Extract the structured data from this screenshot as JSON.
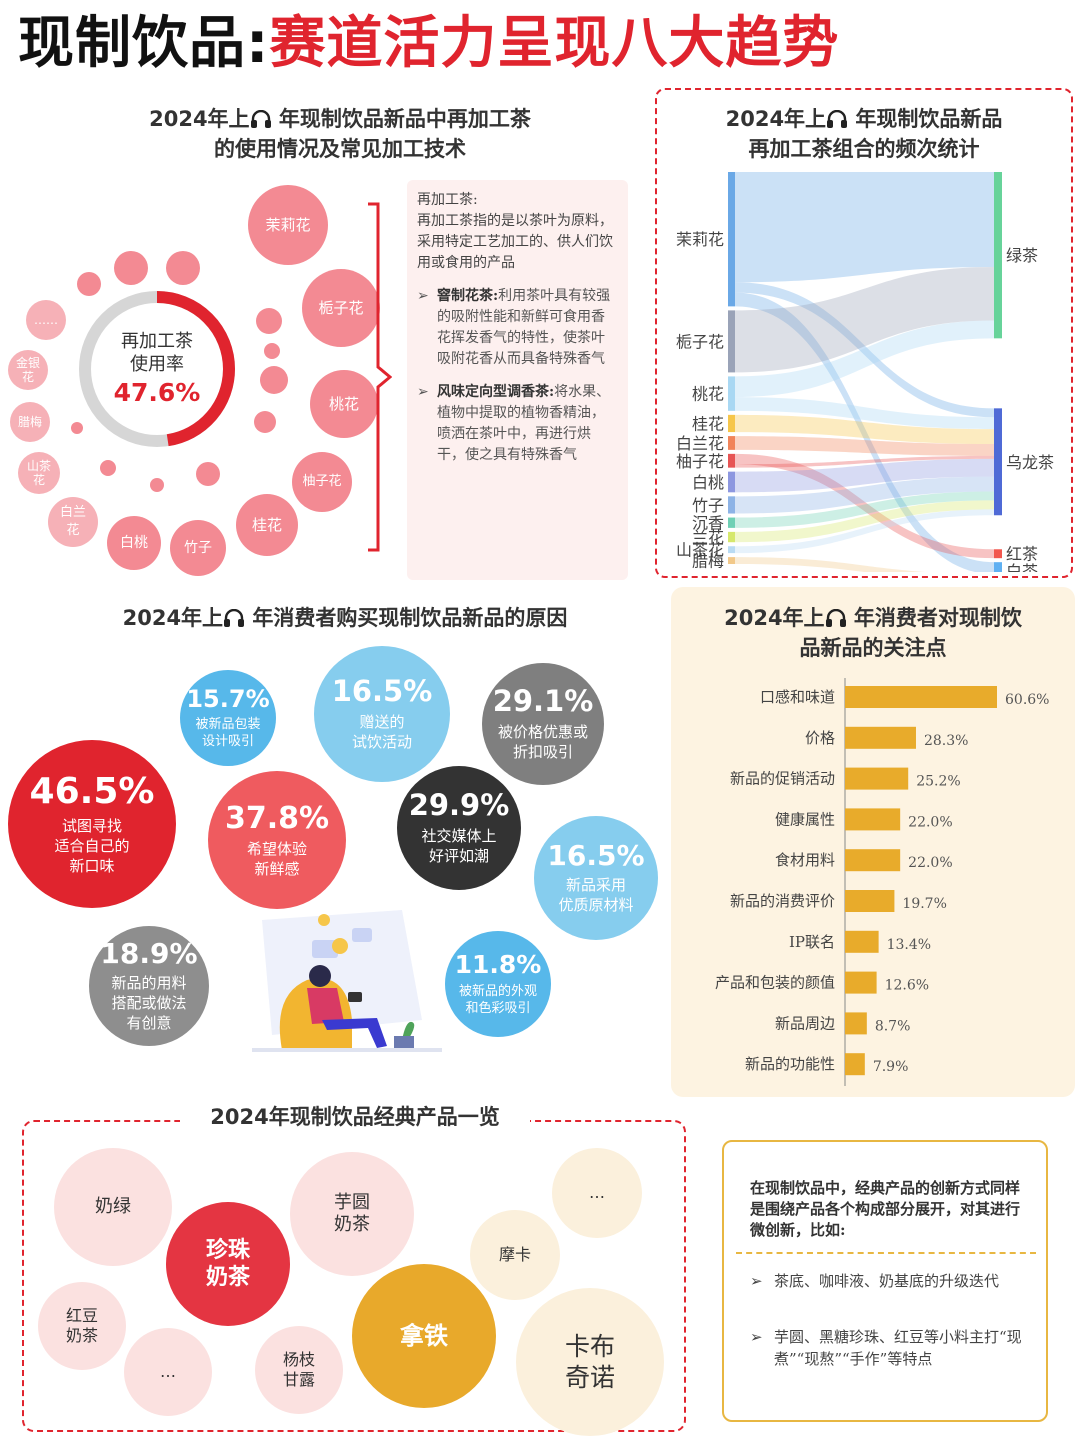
{
  "header": {
    "title_black": "现制饮品:",
    "title_red": "赛道活力呈现八大趋势"
  },
  "tea_usage": {
    "title_line1_a": "2024年上",
    "title_line1_b": "年现制饮品新品中再加工茶",
    "title_line2": "的使用情况及常见加工技术",
    "donut_label_line1": "再加工茶",
    "donut_label_line2": "使用率",
    "donut_value": "47.6%",
    "usage_rate": 47.6,
    "flowers": [
      "茉莉花",
      "栀子花",
      "桃花",
      "柚子花",
      "桂花",
      "竹子",
      "白桃",
      "白兰花",
      "山茶花",
      "腊梅",
      "金银花",
      "……"
    ],
    "note_title": "再加工茶:",
    "note_desc": "再加工茶指的是以茶叶为原料，采用特定工艺加工的、供人们饮用或食用的产品",
    "technique1_name": "窨制花茶:",
    "technique1_desc": "利用茶叶具有较强的吸附性能和新鲜可食用香花挥发香气的特性，使茶叶吸附花香从而具备特殊香气",
    "technique2_name": "风味定向型调香茶:",
    "technique2_desc": "将水果、植物中提取的植物香精油，喷洒在茶叶中，再进行烘干，使之具有特殊香气",
    "arrow_glyph": "➢"
  },
  "sankey": {
    "title_line1_a": "2024年上",
    "title_line1_b": "年现制饮品新品",
    "title_line2": "再加工茶组合的频次统计"
  },
  "reasons": {
    "title_a": "2024年上",
    "title_b": "年消费者购买现制饮品新品的原因"
  },
  "attention": {
    "title_line1_a": "2024年上",
    "title_line1_b": "年消费者对现制饮",
    "title_line2": "品新品的关注点"
  },
  "classic": {
    "title": "2024年现制饮品经典产品一览",
    "products": [
      "奶绿",
      "芋圆奶茶",
      "珍珠奶茶",
      "红豆奶茶",
      "…",
      "杨枝甘露",
      "拿铁",
      "摩卡",
      "卡布奇诺",
      "…"
    ]
  },
  "tip": {
    "intro": "在现制饮品中，经典产品的创新方式同样是围绕产品各个构成部分展开，对其进行微创新，比如:",
    "item1": "茶底、咖啡液、奶基底的升级迭代",
    "item2": "芋圆、黑糖珍珠、红豆等小料主打“现煮”“现熬”“手作”等特点",
    "arrow_glyph": "➢"
  },
  "chart_data": [
    {
      "type": "donut",
      "title": "再加工茶使用率",
      "values": [
        47.6,
        52.4
      ],
      "categories": [
        "再加工茶",
        ""
      ],
      "colors": [
        "#e0242e",
        "#d4d4d4"
      ]
    },
    {
      "type": "sankey",
      "title": "2024年上半年现制饮品新品再加工茶组合的频次统计",
      "sources": [
        "茉莉花",
        "栀子花",
        "桃花",
        "桂花",
        "白兰花",
        "柚子花",
        "白桃",
        "竹子",
        "沉香",
        "兰花",
        "山茶花",
        "腊梅"
      ],
      "targets": [
        "绿茶",
        "乌龙茶",
        "红茶",
        "白茶"
      ],
      "source_colors": [
        "#6aa8e6",
        "#9aa3b8",
        "#a9d8f3",
        "#f6c64a",
        "#f1845a",
        "#e75454",
        "#8d97e0",
        "#8db3e6",
        "#6fd0b5",
        "#d6e86c",
        "#b9dbf3",
        "#f2c98a"
      ],
      "target_colors": [
        "#67d39a",
        "#4f6ad6",
        "#f2574e",
        "#5fb0f2"
      ],
      "links": [
        {
          "source": "茉莉花",
          "target": "绿茶",
          "value": 32
        },
        {
          "source": "茉莉花",
          "target": "乌龙茶",
          "value": 3
        },
        {
          "source": "茉莉花",
          "target": "白茶",
          "value": 4
        },
        {
          "source": "栀子花",
          "target": "绿茶",
          "value": 18
        },
        {
          "source": "桃花",
          "target": "绿茶",
          "value": 6
        },
        {
          "source": "桃花",
          "target": "乌龙茶",
          "value": 4
        },
        {
          "source": "桂花",
          "target": "乌龙茶",
          "value": 5
        },
        {
          "source": "白兰花",
          "target": "乌龙茶",
          "value": 4
        },
        {
          "source": "柚子花",
          "target": "红茶",
          "value": 3
        },
        {
          "source": "柚子花",
          "target": "乌龙茶",
          "value": 1
        },
        {
          "source": "白桃",
          "target": "乌龙茶",
          "value": 6
        },
        {
          "source": "竹子",
          "target": "乌龙茶",
          "value": 5
        },
        {
          "source": "沉香",
          "target": "乌龙茶",
          "value": 3
        },
        {
          "source": "兰花",
          "target": "乌龙茶",
          "value": 3
        },
        {
          "source": "山茶花",
          "target": "乌龙茶",
          "value": 2
        },
        {
          "source": "腊梅",
          "target": "白茶",
          "value": 2
        }
      ]
    },
    {
      "type": "bubble",
      "title": "2024年上半年消费者购买现制饮品新品的原因",
      "categories": [
        "试图寻找适合自己的新口味",
        "希望体验新鲜感",
        "社交媒体上好评如潮",
        "被价格优惠或折扣吸引",
        "被新品的用料搭配或做法有创意",
        "被新品包装设计吸引",
        "赠送的试饮活动",
        "新品采用优质原材料",
        "被新品的外观和色彩吸引"
      ],
      "values": [
        46.5,
        37.8,
        29.9,
        29.1,
        18.9,
        15.7,
        16.5,
        16.5,
        11.8
      ],
      "value_labels": [
        "46.5%",
        "37.8%",
        "29.9%",
        "29.1%",
        "18.9%",
        "15.7%",
        "16.5%",
        "16.5%",
        "11.8%"
      ],
      "label_lines": [
        [
          "试图寻找",
          "适合自己的",
          "新口味"
        ],
        [
          "希望体验",
          "新鲜感"
        ],
        [
          "社交媒体上",
          "好评如潮"
        ],
        [
          "被价格优惠或",
          "折扣吸引"
        ],
        [
          "新品的用料",
          "搭配或做法",
          "有创意"
        ],
        [
          "被新品包装",
          "设计吸引"
        ],
        [
          "赠送的",
          "试饮活动"
        ],
        [
          "新品采用",
          "优质原材料"
        ],
        [
          "被新品的外观",
          "和色彩吸引"
        ]
      ],
      "colors": [
        "#e0242e",
        "#ef5b5f",
        "#333333",
        "#7f7f7f",
        "#8e8e8e",
        "#57b8ea",
        "#86cdee",
        "#86cdee",
        "#57b8ea"
      ]
    },
    {
      "type": "bar",
      "orientation": "horizontal",
      "title": "2024年上半年消费者对现制饮品新品的关注点",
      "categories": [
        "口感和味道",
        "价格",
        "新品的促销活动",
        "健康属性",
        "食材用料",
        "新品的消费评价",
        "IP联名",
        "产品和包装的颜值",
        "新品周边",
        "新品的功能性"
      ],
      "values": [
        60.6,
        28.3,
        25.2,
        22.0,
        22.0,
        19.7,
        13.4,
        12.6,
        8.7,
        7.9
      ],
      "value_labels": [
        "60.6%",
        "28.3%",
        "25.2%",
        "22.0%",
        "22.0%",
        "19.7%",
        "13.4%",
        "12.6%",
        "8.7%",
        "7.9%"
      ],
      "xlim": [
        0,
        60.6
      ],
      "color": "#e8ab2b"
    }
  ]
}
